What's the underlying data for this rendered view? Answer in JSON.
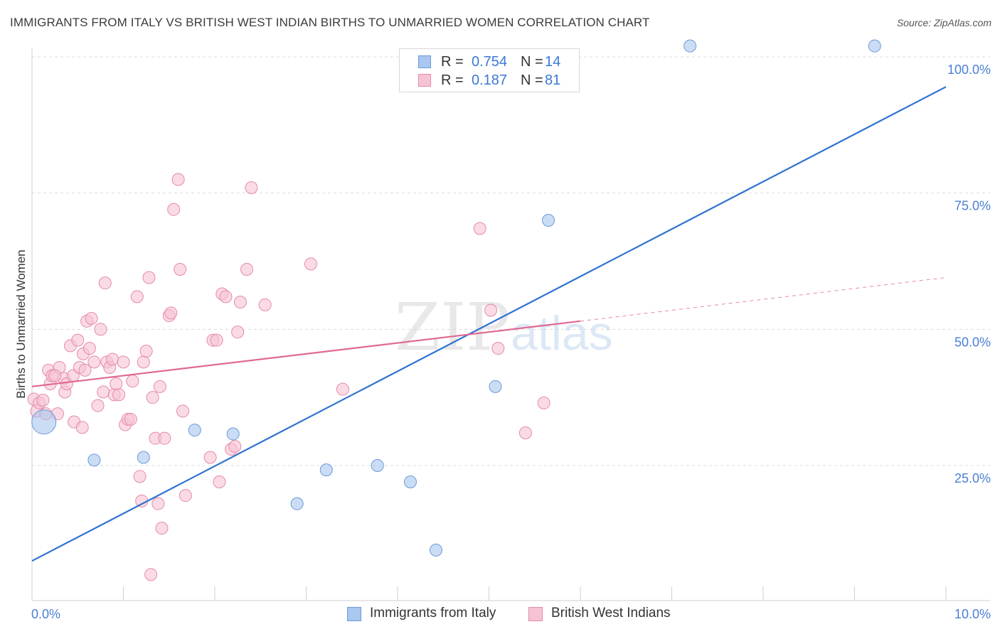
{
  "title": "IMMIGRANTS FROM ITALY VS BRITISH WEST INDIAN BIRTHS TO UNMARRIED WOMEN CORRELATION CHART",
  "source": "Source: ZipAtlas.com",
  "watermark": {
    "zip": "ZIP",
    "atlas": "atlas"
  },
  "legend_top": [
    {
      "r_label": "R =",
      "r_value": "0.754",
      "n_label": "N =",
      "n_value": "14"
    },
    {
      "r_label": "R =",
      "r_value": "0.187",
      "n_label": "N =",
      "n_value": "81"
    }
  ],
  "chart_data": {
    "type": "scatter",
    "title": "IMMIGRANTS FROM ITALY VS BRITISH WEST INDIAN BIRTHS TO UNMARRIED WOMEN CORRELATION CHART",
    "xlabel": "",
    "ylabel": "Births to Unmarried Women",
    "xlim": [
      0,
      10
    ],
    "ylim": [
      0,
      105
    ],
    "x_tick_labels": [
      "0.0%",
      "10.0%"
    ],
    "y_tick_labels": [
      "25.0%",
      "50.0%",
      "75.0%",
      "100.0%"
    ],
    "y_ticks": [
      25,
      50,
      75,
      100
    ],
    "grid": true,
    "legend_position": "bottom",
    "series": [
      {
        "name": "Immigrants from Italy",
        "color": "#a9c7ef",
        "edge_color": "#6a9ad8",
        "line_color": "#2e72d2",
        "trend": {
          "x": [
            0,
            10
          ],
          "y": [
            7.5,
            94.5
          ],
          "dashed_beyond": null
        },
        "points": [
          {
            "x": 0.13,
            "y": 33,
            "big": true
          },
          {
            "x": 0.68,
            "y": 26,
            "big": false
          },
          {
            "x": 1.22,
            "y": 26.5,
            "big": false
          },
          {
            "x": 1.78,
            "y": 31.5,
            "big": false
          },
          {
            "x": 2.2,
            "y": 30.8,
            "big": false
          },
          {
            "x": 2.9,
            "y": 18,
            "big": false
          },
          {
            "x": 3.22,
            "y": 24.2,
            "big": false
          },
          {
            "x": 3.78,
            "y": 25,
            "big": false
          },
          {
            "x": 4.14,
            "y": 22,
            "big": false
          },
          {
            "x": 4.42,
            "y": 9.5,
            "big": false
          },
          {
            "x": 5.07,
            "y": 39.5,
            "big": false
          },
          {
            "x": 5.65,
            "y": 70,
            "big": false
          },
          {
            "x": 7.2,
            "y": 102,
            "big": false
          },
          {
            "x": 9.22,
            "y": 102,
            "big": false
          }
        ]
      },
      {
        "name": "British West Indians",
        "color": "#f6c3d3",
        "edge_color": "#e58aa9",
        "line_color": "#e06892",
        "trend": {
          "x": [
            0,
            6
          ],
          "y": [
            39.5,
            51.5
          ],
          "dashed_x": [
            6,
            10
          ],
          "dashed_y": [
            51.5,
            59.5
          ]
        },
        "points": [
          {
            "x": 0.02,
            "y": 37.2
          },
          {
            "x": 0.05,
            "y": 35
          },
          {
            "x": 0.08,
            "y": 36.5
          },
          {
            "x": 0.12,
            "y": 37
          },
          {
            "x": 0.15,
            "y": 34.5
          },
          {
            "x": 0.18,
            "y": 42.5
          },
          {
            "x": 0.2,
            "y": 40
          },
          {
            "x": 0.22,
            "y": 41.5
          },
          {
            "x": 0.28,
            "y": 34.5
          },
          {
            "x": 0.3,
            "y": 43
          },
          {
            "x": 0.35,
            "y": 41
          },
          {
            "x": 0.36,
            "y": 38.5
          },
          {
            "x": 0.38,
            "y": 40
          },
          {
            "x": 0.42,
            "y": 47
          },
          {
            "x": 0.45,
            "y": 41.5
          },
          {
            "x": 0.46,
            "y": 33
          },
          {
            "x": 0.5,
            "y": 48
          },
          {
            "x": 0.52,
            "y": 43
          },
          {
            "x": 0.55,
            "y": 32
          },
          {
            "x": 0.56,
            "y": 45.5
          },
          {
            "x": 0.6,
            "y": 51.5
          },
          {
            "x": 0.63,
            "y": 46.5
          },
          {
            "x": 0.65,
            "y": 52
          },
          {
            "x": 0.68,
            "y": 44
          },
          {
            "x": 0.72,
            "y": 36
          },
          {
            "x": 0.75,
            "y": 50
          },
          {
            "x": 0.78,
            "y": 38.5
          },
          {
            "x": 0.8,
            "y": 58.5
          },
          {
            "x": 0.82,
            "y": 44
          },
          {
            "x": 0.85,
            "y": 43
          },
          {
            "x": 0.88,
            "y": 44.5
          },
          {
            "x": 0.9,
            "y": 38
          },
          {
            "x": 0.92,
            "y": 40
          },
          {
            "x": 0.95,
            "y": 38
          },
          {
            "x": 1.0,
            "y": 44
          },
          {
            "x": 1.02,
            "y": 32.5
          },
          {
            "x": 1.05,
            "y": 33.5
          },
          {
            "x": 1.08,
            "y": 33.5
          },
          {
            "x": 1.1,
            "y": 40.5
          },
          {
            "x": 1.15,
            "y": 56
          },
          {
            "x": 1.18,
            "y": 23
          },
          {
            "x": 1.2,
            "y": 18.5
          },
          {
            "x": 1.22,
            "y": 44
          },
          {
            "x": 1.25,
            "y": 46
          },
          {
            "x": 1.28,
            "y": 59.5
          },
          {
            "x": 1.32,
            "y": 37.5
          },
          {
            "x": 1.35,
            "y": 30
          },
          {
            "x": 1.38,
            "y": 18
          },
          {
            "x": 1.4,
            "y": 39.5
          },
          {
            "x": 1.42,
            "y": 13.5
          },
          {
            "x": 1.45,
            "y": 30
          },
          {
            "x": 1.5,
            "y": 52.5
          },
          {
            "x": 1.52,
            "y": 53
          },
          {
            "x": 1.55,
            "y": 72
          },
          {
            "x": 1.6,
            "y": 77.5
          },
          {
            "x": 1.62,
            "y": 61
          },
          {
            "x": 1.65,
            "y": 35
          },
          {
            "x": 1.68,
            "y": 19.5
          },
          {
            "x": 1.95,
            "y": 26.5
          },
          {
            "x": 1.98,
            "y": 48
          },
          {
            "x": 2.02,
            "y": 48
          },
          {
            "x": 2.05,
            "y": 22
          },
          {
            "x": 2.08,
            "y": 56.5
          },
          {
            "x": 2.12,
            "y": 56
          },
          {
            "x": 2.18,
            "y": 28
          },
          {
            "x": 2.22,
            "y": 28.5
          },
          {
            "x": 2.25,
            "y": 49.5
          },
          {
            "x": 2.28,
            "y": 55
          },
          {
            "x": 2.35,
            "y": 61
          },
          {
            "x": 2.4,
            "y": 76
          },
          {
            "x": 2.55,
            "y": 54.5
          },
          {
            "x": 3.05,
            "y": 62
          },
          {
            "x": 3.4,
            "y": 39
          },
          {
            "x": 1.3,
            "y": 5
          },
          {
            "x": 4.9,
            "y": 68.5
          },
          {
            "x": 5.02,
            "y": 53.5
          },
          {
            "x": 5.1,
            "y": 46.5
          },
          {
            "x": 5.4,
            "y": 31
          },
          {
            "x": 5.6,
            "y": 36.5
          },
          {
            "x": 0.58,
            "y": 42.5
          },
          {
            "x": 0.25,
            "y": 41.5
          }
        ]
      }
    ]
  }
}
